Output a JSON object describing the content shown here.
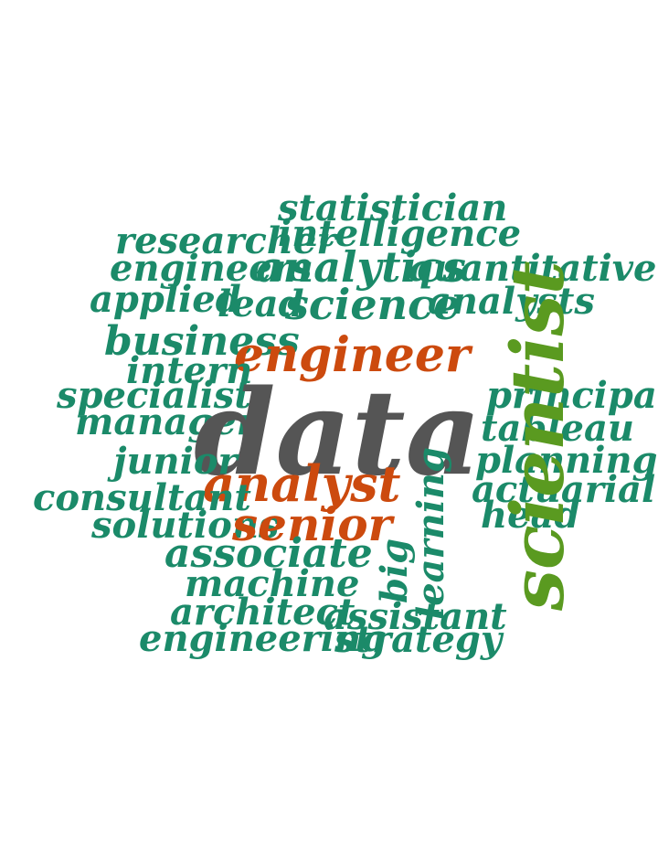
{
  "colors": {
    "background": "#ffffff",
    "teal": "#1b8a69",
    "orange": "#cc4a0e",
    "grey": "#555555",
    "green": "#5a9a20"
  },
  "words": [
    {
      "text": "statistician",
      "color": "teal"
    },
    {
      "text": "intelligence",
      "color": "teal"
    },
    {
      "text": "researcher",
      "color": "teal"
    },
    {
      "text": "engineers",
      "color": "teal"
    },
    {
      "text": "analytics",
      "color": "teal"
    },
    {
      "text": "quantitative",
      "color": "teal"
    },
    {
      "text": "applied",
      "color": "teal"
    },
    {
      "text": "lead",
      "color": "teal"
    },
    {
      "text": "science",
      "color": "teal"
    },
    {
      "text": "analysts",
      "color": "teal"
    },
    {
      "text": "business",
      "color": "teal"
    },
    {
      "text": "engineer",
      "color": "orange"
    },
    {
      "text": "intern",
      "color": "teal"
    },
    {
      "text": "specialist",
      "color": "teal"
    },
    {
      "text": "principal",
      "color": "teal"
    },
    {
      "text": "manager",
      "color": "teal"
    },
    {
      "text": "data",
      "color": "grey"
    },
    {
      "text": "tableau",
      "color": "teal"
    },
    {
      "text": "junior",
      "color": "teal"
    },
    {
      "text": "planning",
      "color": "teal"
    },
    {
      "text": "analyst",
      "color": "orange"
    },
    {
      "text": "actuarial",
      "color": "teal"
    },
    {
      "text": "consultant",
      "color": "teal"
    },
    {
      "text": "head",
      "color": "teal"
    },
    {
      "text": "solutions",
      "color": "teal"
    },
    {
      "text": "senior",
      "color": "orange"
    },
    {
      "text": "associate",
      "color": "teal"
    },
    {
      "text": "big",
      "color": "teal"
    },
    {
      "text": "learning",
      "color": "teal"
    },
    {
      "text": "scientist",
      "color": "green"
    },
    {
      "text": "machine",
      "color": "teal"
    },
    {
      "text": "architect",
      "color": "teal"
    },
    {
      "text": "assistant",
      "color": "teal"
    },
    {
      "text": "engineering",
      "color": "teal"
    },
    {
      "text": "strategy",
      "color": "teal"
    }
  ]
}
